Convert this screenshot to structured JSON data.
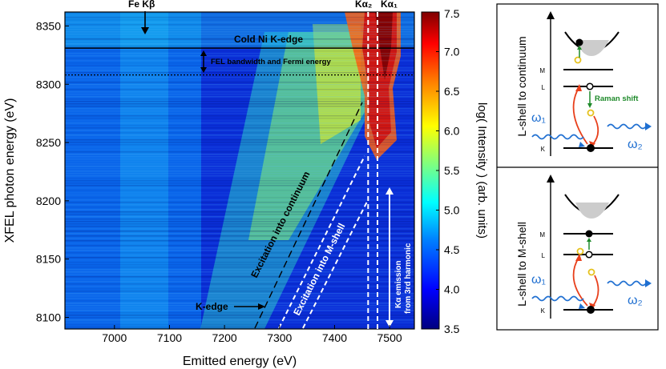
{
  "heatmap": {
    "xlabel": "Emitted energy (eV)",
    "ylabel": "XFEL photon energy (eV)",
    "xlim": [
      6910,
      7545
    ],
    "ylim": [
      8090,
      8362
    ],
    "xticks": [
      {
        "value": 7000,
        "label": "7000"
      },
      {
        "value": 7100,
        "label": "7100"
      },
      {
        "value": 7200,
        "label": "7200"
      },
      {
        "value": 7300,
        "label": "7300"
      },
      {
        "value": 7400,
        "label": "7400"
      },
      {
        "value": 7500,
        "label": "7500"
      }
    ],
    "yticks": [
      {
        "value": 8100,
        "label": "8100"
      },
      {
        "value": 8150,
        "label": "8150"
      },
      {
        "value": 8200,
        "label": "8200"
      },
      {
        "value": 8250,
        "label": "8250"
      },
      {
        "value": 8300,
        "label": "8300"
      },
      {
        "value": 8350,
        "label": "8350"
      }
    ],
    "lines": {
      "cold_k_edge_energy": 8331,
      "fel_band_lower": 8308,
      "ka2_energy": 7461,
      "ka1_energy": 7478
    },
    "labels": {
      "fe_kbeta": "Fe Kβ",
      "ka2": "Kα₂",
      "ka1": "Kα₁",
      "cold_ni_k_edge": "Cold Ni K-edge",
      "fel_bandwidth": "FEL bandwidth and Fermi energy",
      "k_edge": "K-edge",
      "excitation_continuum": "Excitation into continuum",
      "excitation_mshell": "Excitation into M-shell",
      "ka_emission_line1": "Kα emission",
      "ka_emission_line2": "from 3rd harmonic"
    }
  },
  "colorbar": {
    "label": "log( Intensity )  (arb. units)",
    "range": [
      3.5,
      7.5
    ],
    "ticks": [
      "3.5",
      "4.0",
      "4.5",
      "5.0",
      "5.5",
      "6.0",
      "6.5",
      "7.0",
      "7.5"
    ],
    "colors": [
      "#00007f",
      "#0000ff",
      "#007fff",
      "#00ffff",
      "#7fff7f",
      "#ffff00",
      "#ff7f00",
      "#ff0000",
      "#7f0000"
    ]
  },
  "diagrams": [
    {
      "title": "L-shell to continuum",
      "levels": {
        "m": "M",
        "l": "L",
        "k": "K"
      },
      "omega1": "ω₁",
      "omega2": "ω₂",
      "raman_shift": "Raman shift"
    },
    {
      "title": "L-shell to M-shell",
      "levels": {
        "m": "M",
        "l": "L",
        "k": "K"
      },
      "omega1": "ω₁",
      "omega2": "ω₂"
    }
  ],
  "colors": {
    "raman_green": "#1e8a2a",
    "photon_blue": "#1f6fd1",
    "transition_red": "#e8401c",
    "hole_yellow": "#e6c21e",
    "band_gray": "#cccccc"
  }
}
